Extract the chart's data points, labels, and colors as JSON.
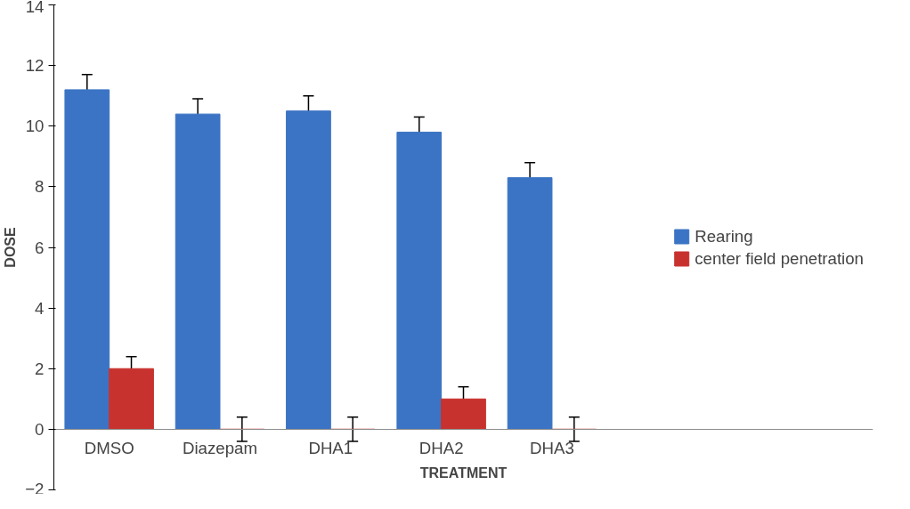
{
  "chart_data": {
    "type": "bar",
    "xlabel": "TREATMENT",
    "ylabel": "DOSE",
    "categories": [
      "DMSO",
      "Diazepam",
      "DHA1",
      "DHA2",
      "DHA3"
    ],
    "series": [
      {
        "name": "Rearing",
        "color": "#3b74c4",
        "values": [
          11.2,
          10.4,
          10.5,
          9.8,
          8.3
        ],
        "errors": [
          0.5,
          0.5,
          0.5,
          0.5,
          0.5
        ]
      },
      {
        "name": "center field penetration",
        "color": "#c8322e",
        "values": [
          2,
          0,
          0,
          1,
          0
        ],
        "errors": [
          0.4,
          0.4,
          0.4,
          0.4,
          0.4
        ]
      }
    ],
    "ylim": [
      -2,
      14
    ],
    "yticks": [
      -2,
      0,
      2,
      4,
      6,
      8,
      10,
      12,
      14
    ],
    "grid": false,
    "legend": "right"
  }
}
